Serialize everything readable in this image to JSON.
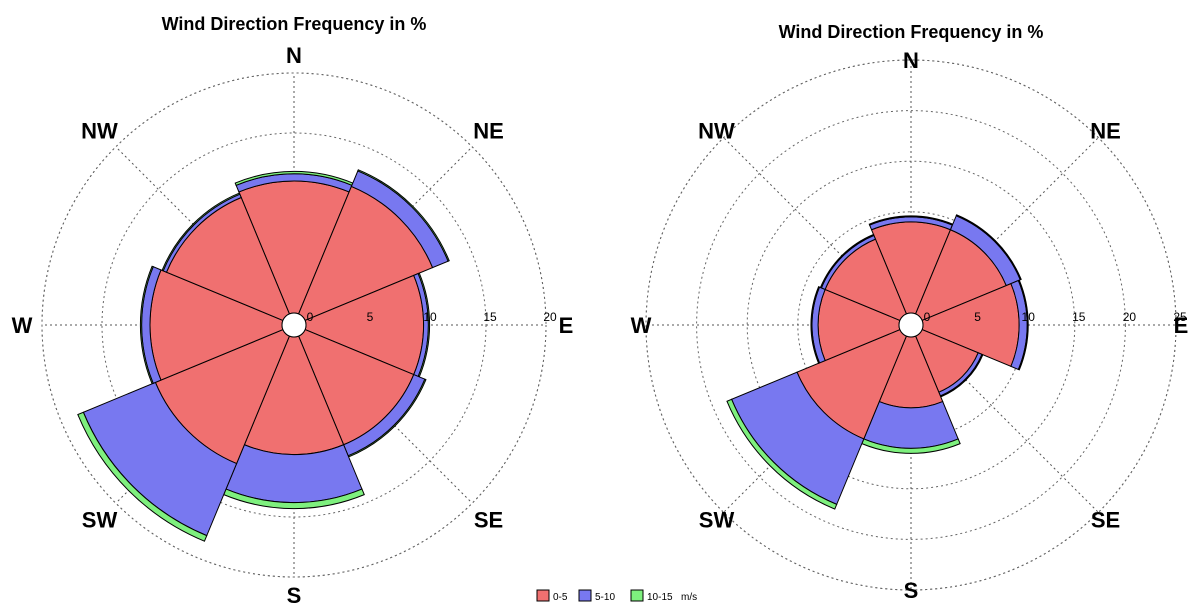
{
  "chart_data": [
    {
      "type": "windrose",
      "title": "Wind Direction Frequency in %",
      "directions": [
        "N",
        "NE",
        "E",
        "SE",
        "S",
        "SW",
        "W",
        "NW"
      ],
      "radial_ticks": [
        "0",
        "5",
        "10",
        "15",
        "20"
      ],
      "radial_max": 20,
      "series": [
        {
          "name": "0-5",
          "color": "#f07070",
          "values": [
            11,
            11.5,
            9.8,
            9.8,
            9.8,
            11.5,
            11,
            10.5
          ]
        },
        {
          "name": "5-10",
          "color": "#7878f0",
          "values": [
            0.6,
            1.4,
            0.4,
            1.0,
            4.0,
            6.5,
            0.7,
            0.3
          ]
        },
        {
          "name": "10-15",
          "color": "#7ef07e",
          "values": [
            0.2,
            0.1,
            0.1,
            0.1,
            0.5,
            0.5,
            0.1,
            0.1
          ]
        }
      ]
    },
    {
      "type": "windrose",
      "title": "Wind Direction Frequency in %",
      "directions": [
        "N",
        "NE",
        "E",
        "SE",
        "S",
        "SW",
        "W",
        "NW"
      ],
      "radial_ticks": [
        "0",
        "5",
        "10",
        "15",
        "20",
        "25"
      ],
      "radial_max": 25,
      "series": [
        {
          "name": "0-5",
          "color": "#f07070",
          "values": [
            9,
            9,
            9.5,
            6,
            7,
            11,
            8,
            8
          ]
        },
        {
          "name": "5-10",
          "color": "#7878f0",
          "values": [
            0.5,
            1.5,
            0.8,
            0.4,
            4.0,
            7.0,
            0.6,
            0.4
          ]
        },
        {
          "name": "10-15",
          "color": "#7ef07e",
          "values": [
            0.1,
            0.1,
            0.1,
            0.1,
            0.5,
            0.5,
            0.1,
            0.1
          ]
        }
      ]
    }
  ],
  "legend": {
    "items": [
      {
        "label": "0-5",
        "color": "#f07070"
      },
      {
        "label": "5-10",
        "color": "#7878f0"
      },
      {
        "label": "10-15",
        "color": "#7ef07e"
      }
    ],
    "unit": "m/s"
  }
}
